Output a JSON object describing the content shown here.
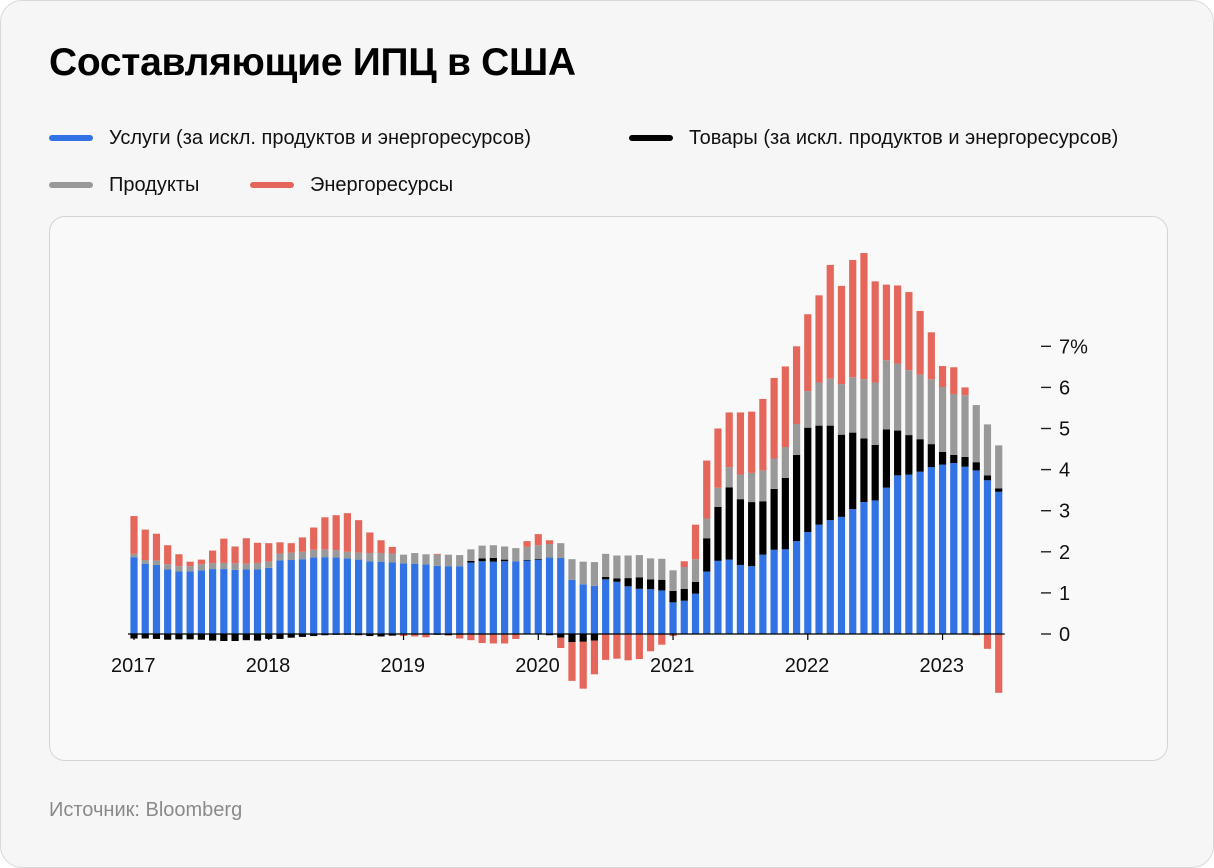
{
  "title": "Составляющие ИПЦ в США",
  "source": "Источник: Bloomberg",
  "colors": {
    "services": "#3173e4",
    "goods": "#000000",
    "food": "#999999",
    "energy": "#e5665a"
  },
  "legend": [
    {
      "key": "services",
      "label": "Услуги (за искл. продуктов и энергоресурсов)"
    },
    {
      "key": "goods",
      "label": "Товары (за искл. продуктов и энергоресурсов)"
    },
    {
      "key": "food",
      "label": "Продукты"
    },
    {
      "key": "energy",
      "label": "Энергоресурсы"
    }
  ],
  "chart_data": {
    "type": "bar",
    "stacked": true,
    "title": "Составляющие ИПЦ в США",
    "ylim": [
      -1.6,
      9.1
    ],
    "yticks": [
      0,
      1,
      2,
      3,
      4,
      5,
      6,
      7
    ],
    "ytick_labels": [
      "0",
      "1",
      "2",
      "3",
      "4",
      "5",
      "6",
      "7%"
    ],
    "y_axis_side": "right",
    "x_labels": [
      {
        "label": "2017",
        "index": 0
      },
      {
        "label": "2018",
        "index": 12
      },
      {
        "label": "2019",
        "index": 24
      },
      {
        "label": "2020",
        "index": 36
      },
      {
        "label": "2021",
        "index": 48
      },
      {
        "label": "2022",
        "index": 60
      },
      {
        "label": "2023",
        "index": 72
      }
    ],
    "categories": [
      "2017-01",
      "2017-02",
      "2017-03",
      "2017-04",
      "2017-05",
      "2017-06",
      "2017-07",
      "2017-08",
      "2017-09",
      "2017-10",
      "2017-11",
      "2017-12",
      "2018-01",
      "2018-02",
      "2018-03",
      "2018-04",
      "2018-05",
      "2018-06",
      "2018-07",
      "2018-08",
      "2018-09",
      "2018-10",
      "2018-11",
      "2018-12",
      "2019-01",
      "2019-02",
      "2019-03",
      "2019-04",
      "2019-05",
      "2019-06",
      "2019-07",
      "2019-08",
      "2019-09",
      "2019-10",
      "2019-11",
      "2019-12",
      "2020-01",
      "2020-02",
      "2020-03",
      "2020-04",
      "2020-05",
      "2020-06",
      "2020-07",
      "2020-08",
      "2020-09",
      "2020-10",
      "2020-11",
      "2020-12",
      "2021-01",
      "2021-02",
      "2021-03",
      "2021-04",
      "2021-05",
      "2021-06",
      "2021-07",
      "2021-08",
      "2021-09",
      "2021-10",
      "2021-11",
      "2021-12",
      "2022-01",
      "2022-02",
      "2022-03",
      "2022-04",
      "2022-05",
      "2022-06",
      "2022-07",
      "2022-08",
      "2022-09",
      "2022-10",
      "2022-11",
      "2022-12",
      "2023-01",
      "2023-02",
      "2023-03",
      "2023-04",
      "2023-05",
      "2023-06"
    ],
    "series": [
      {
        "name": "Услуги (за искл. продуктов и энергоресурсов)",
        "key": "services",
        "values": [
          1.87,
          1.71,
          1.68,
          1.57,
          1.52,
          1.52,
          1.55,
          1.58,
          1.58,
          1.56,
          1.57,
          1.57,
          1.61,
          1.79,
          1.8,
          1.82,
          1.86,
          1.87,
          1.86,
          1.84,
          1.81,
          1.77,
          1.76,
          1.74,
          1.72,
          1.71,
          1.69,
          1.66,
          1.65,
          1.65,
          1.74,
          1.77,
          1.76,
          1.77,
          1.77,
          1.79,
          1.81,
          1.86,
          1.85,
          1.32,
          1.21,
          1.17,
          1.33,
          1.27,
          1.16,
          1.1,
          1.09,
          1.06,
          0.77,
          0.81,
          0.98,
          1.52,
          1.78,
          1.81,
          1.68,
          1.65,
          1.93,
          2.05,
          2.06,
          2.26,
          2.48,
          2.66,
          2.77,
          2.85,
          3.04,
          3.21,
          3.25,
          3.56,
          3.86,
          3.88,
          3.95,
          4.06,
          4.12,
          4.16,
          4.07,
          3.98,
          3.74,
          3.46
        ]
      },
      {
        "name": "Товары (за искл. продуктов и энергоресурсов)",
        "key": "goods",
        "values": [
          -0.11,
          -0.11,
          -0.12,
          -0.14,
          -0.13,
          -0.13,
          -0.14,
          -0.16,
          -0.17,
          -0.17,
          -0.15,
          -0.16,
          -0.12,
          -0.12,
          -0.09,
          -0.07,
          -0.05,
          -0.03,
          -0.02,
          -0.02,
          -0.03,
          -0.05,
          -0.06,
          -0.04,
          0.0,
          0.0,
          0.0,
          -0.02,
          -0.03,
          -0.02,
          0.04,
          0.07,
          0.09,
          0.04,
          0.0,
          0.01,
          0.02,
          -0.03,
          -0.09,
          -0.2,
          -0.19,
          -0.16,
          0.06,
          0.08,
          0.2,
          0.28,
          0.24,
          0.26,
          0.28,
          0.29,
          0.29,
          0.81,
          1.31,
          1.76,
          1.6,
          1.56,
          1.3,
          1.48,
          1.74,
          2.1,
          2.54,
          2.41,
          2.3,
          2.0,
          1.86,
          1.55,
          1.35,
          1.42,
          1.09,
          0.96,
          0.79,
          0.56,
          0.31,
          0.2,
          0.24,
          0.2,
          0.12,
          0.08
        ]
      },
      {
        "name": "Продукты",
        "key": "food",
        "values": [
          0.08,
          0.09,
          0.11,
          0.13,
          0.13,
          0.13,
          0.15,
          0.14,
          0.15,
          0.16,
          0.14,
          0.16,
          0.15,
          0.17,
          0.18,
          0.18,
          0.19,
          0.19,
          0.18,
          0.16,
          0.17,
          0.2,
          0.21,
          0.22,
          0.21,
          0.26,
          0.25,
          0.27,
          0.28,
          0.27,
          0.28,
          0.31,
          0.31,
          0.32,
          0.32,
          0.32,
          0.33,
          0.33,
          0.36,
          0.5,
          0.55,
          0.58,
          0.56,
          0.56,
          0.55,
          0.54,
          0.51,
          0.51,
          0.5,
          0.53,
          0.55,
          0.48,
          0.47,
          0.49,
          0.6,
          0.71,
          0.75,
          0.74,
          0.75,
          0.75,
          0.89,
          1.05,
          1.14,
          1.23,
          1.35,
          1.44,
          1.52,
          1.68,
          1.63,
          1.58,
          1.57,
          1.58,
          1.58,
          1.48,
          1.5,
          1.39,
          1.24,
          1.05
        ]
      },
      {
        "name": "Энергоресурсы",
        "key": "energy",
        "values": [
          0.92,
          0.74,
          0.65,
          0.46,
          0.29,
          0.11,
          0.11,
          0.31,
          0.59,
          0.41,
          0.62,
          0.49,
          0.45,
          0.27,
          0.23,
          0.35,
          0.54,
          0.78,
          0.85,
          0.94,
          0.79,
          0.5,
          0.31,
          0.16,
          -0.05,
          -0.06,
          -0.08,
          0.02,
          -0.01,
          -0.09,
          -0.15,
          -0.22,
          -0.23,
          -0.23,
          -0.12,
          0.14,
          0.27,
          0.09,
          -0.25,
          -0.94,
          -1.14,
          -0.82,
          -0.63,
          -0.6,
          -0.64,
          -0.61,
          -0.42,
          -0.26,
          -0.05,
          0.14,
          0.84,
          1.41,
          1.44,
          1.33,
          1.51,
          1.49,
          1.74,
          1.96,
          1.96,
          1.89,
          1.87,
          2.12,
          2.77,
          2.39,
          2.85,
          3.07,
          2.46,
          1.84,
          1.9,
          1.9,
          1.55,
          1.14,
          0.51,
          0.65,
          0.19,
          -0.03,
          -0.36,
          -1.43
        ]
      }
    ]
  }
}
